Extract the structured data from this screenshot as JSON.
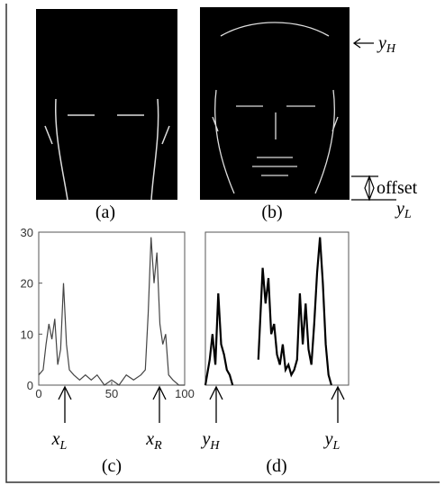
{
  "images": [
    {
      "label": "(a)"
    },
    {
      "label": "(b)"
    }
  ],
  "markers": {
    "top": {
      "base": "y",
      "sub": "H"
    },
    "offset": "offset",
    "bottom": {
      "base": "y",
      "sub": "L"
    }
  },
  "chart_data": [
    {
      "type": "line",
      "label": "(c)",
      "color": "#444",
      "xlim": [
        0,
        100
      ],
      "ylim": [
        0,
        30
      ],
      "xticks": [
        0,
        50,
        100
      ],
      "yticks": [
        0,
        10,
        20,
        30
      ],
      "x": [
        0,
        3,
        5,
        7,
        9,
        11,
        13,
        15,
        17,
        19,
        21,
        24,
        28,
        32,
        36,
        40,
        45,
        50,
        55,
        60,
        65,
        70,
        73,
        75,
        77,
        79,
        81,
        83,
        85,
        87,
        89,
        92,
        96,
        100
      ],
      "values": [
        2,
        3,
        8,
        12,
        9,
        13,
        4,
        7,
        20,
        8,
        3,
        2,
        1,
        2,
        1,
        2,
        0,
        1,
        0,
        2,
        1,
        2,
        3,
        14,
        29,
        20,
        26,
        12,
        8,
        10,
        2,
        1,
        0,
        0
      ],
      "arrows": [
        {
          "base": "x",
          "sub": "L"
        },
        {
          "base": "x",
          "sub": "R"
        }
      ]
    },
    {
      "type": "line",
      "label": "(d)",
      "color": "#000",
      "xlim": [
        0,
        100
      ],
      "ylim": [
        0,
        30
      ],
      "x": [
        0,
        3,
        5,
        7,
        9,
        11,
        13,
        15,
        17,
        19,
        28,
        37,
        40,
        42,
        44,
        46,
        48,
        50,
        52,
        54,
        56,
        58,
        60,
        62,
        64,
        66,
        68,
        70,
        72,
        74,
        76,
        78,
        80,
        82,
        84,
        86,
        88
      ],
      "values": [
        0,
        5,
        10,
        4,
        18,
        8,
        6,
        3,
        2,
        0,
        null,
        5,
        23,
        16,
        21,
        10,
        12,
        6,
        4,
        8,
        3,
        4,
        2,
        3,
        5,
        18,
        8,
        16,
        7,
        4,
        12,
        22,
        29,
        20,
        8,
        2,
        0
      ],
      "arrows": [
        {
          "base": "y",
          "sub": "H"
        },
        {
          "base": "y",
          "sub": "L"
        }
      ]
    }
  ]
}
